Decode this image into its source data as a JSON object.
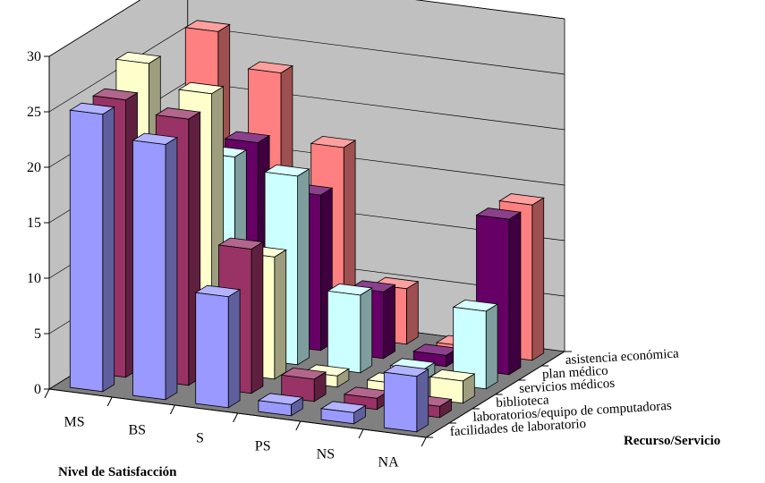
{
  "chart_data": {
    "type": "bar",
    "subtype": "3d-column",
    "xlabel": "Nivel de Satisfacción",
    "ylabel": "",
    "zlabel": "Recurso/Servicio",
    "ylim": [
      0,
      30
    ],
    "yticks": [
      "0",
      "5",
      "10",
      "15",
      "20",
      "25",
      "30"
    ],
    "categories": [
      "MS",
      "BS",
      "S",
      "PS",
      "NS",
      "NA"
    ],
    "series": [
      {
        "name": "facilidades de laboratorio",
        "color": "#9999ff",
        "values": [
          25,
          23,
          10,
          1,
          1,
          5
        ]
      },
      {
        "name": "laboratorios/equipo de computadoras",
        "color": "#993366",
        "values": [
          25,
          24,
          13,
          2,
          1,
          1
        ]
      },
      {
        "name": "biblioteca",
        "color": "#ffffcc",
        "values": [
          27,
          25,
          11,
          1,
          1,
          2
        ]
      },
      {
        "name": "servicios médicos",
        "color": "#ccffff",
        "values": [
          19,
          18,
          17,
          7,
          1,
          7
        ]
      },
      {
        "name": "plan médico",
        "color": "#660066",
        "values": [
          17,
          18,
          14,
          6,
          1,
          14
        ]
      },
      {
        "name": "asistencia económica",
        "color": "#ff8080",
        "values": [
          26,
          23,
          17,
          5,
          0.5,
          14
        ]
      }
    ],
    "grid": true
  }
}
